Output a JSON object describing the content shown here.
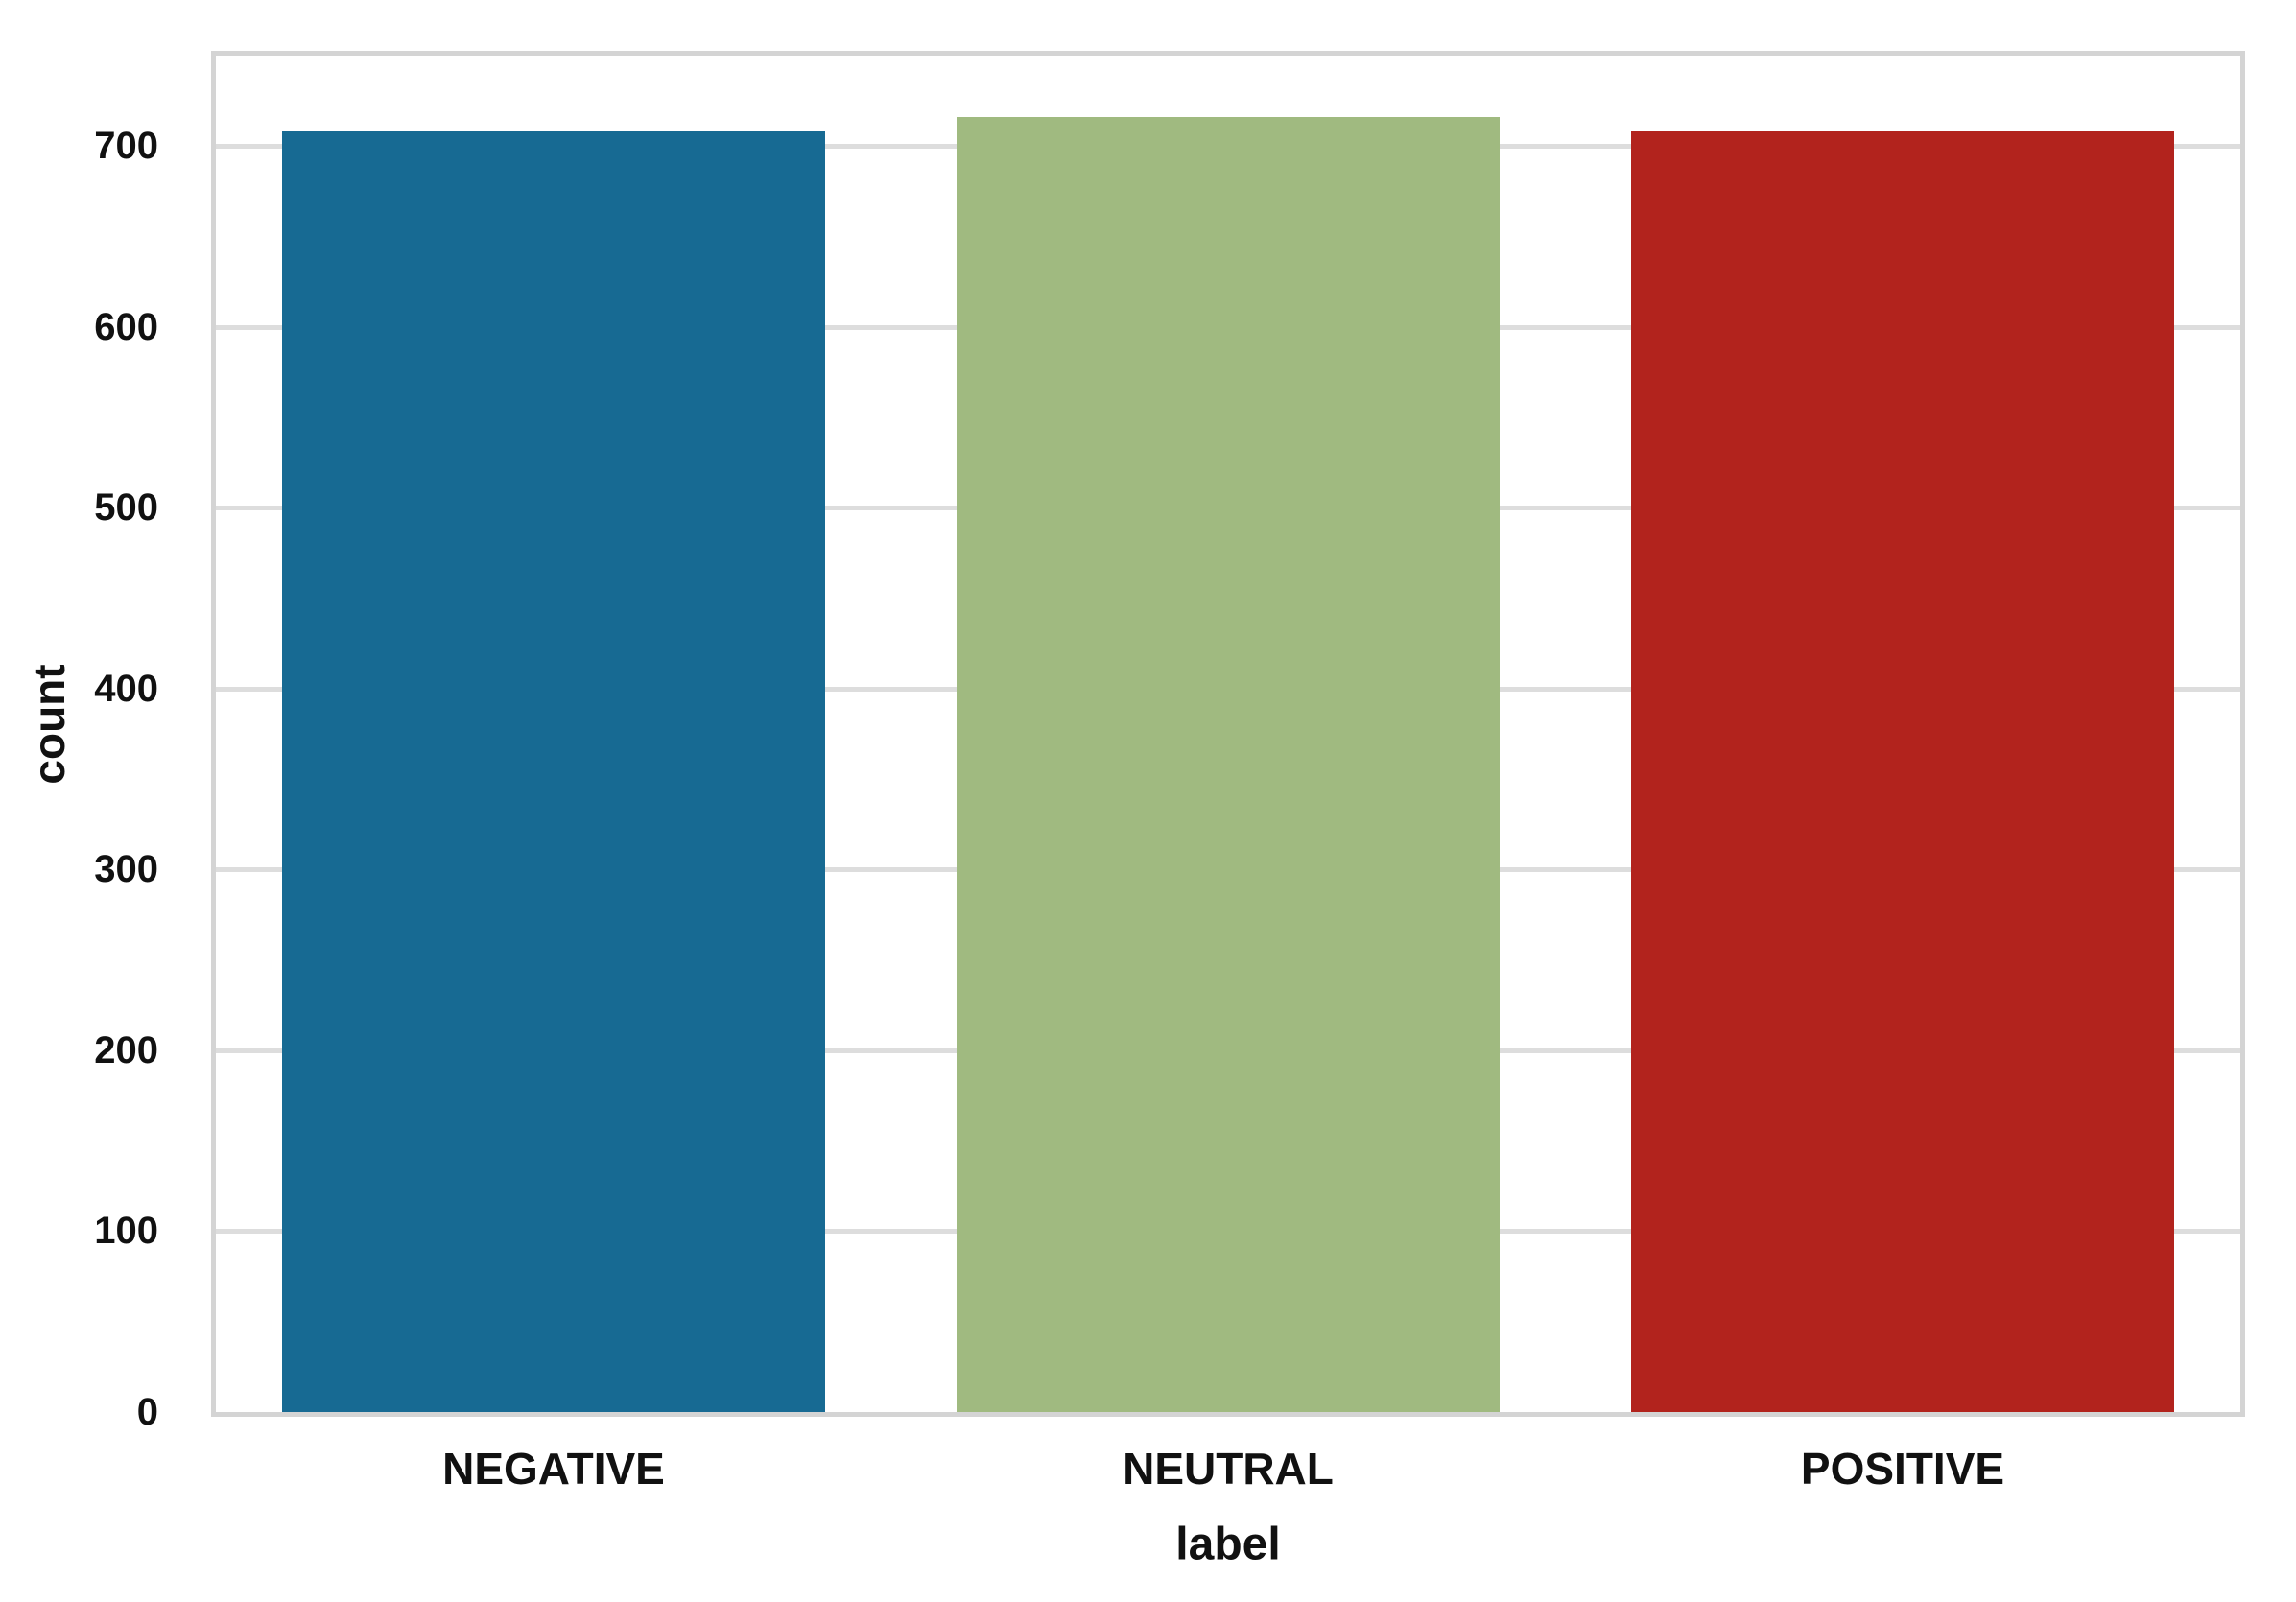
{
  "chart_data": {
    "type": "bar",
    "categories": [
      "NEGATIVE",
      "NEUTRAL",
      "POSITIVE"
    ],
    "values": [
      708,
      716,
      708
    ],
    "title": "",
    "xlabel": "label",
    "ylabel": "count",
    "ylim": [
      0,
      750
    ],
    "yticks": [
      0,
      100,
      200,
      300,
      400,
      500,
      600,
      700
    ],
    "bar_colors": [
      "#176a93",
      "#a0ba80",
      "#b2231d"
    ],
    "grid": "horizontal",
    "legend_position": "none"
  },
  "colors": {
    "background": "#ffffff",
    "plot_background": "#ffffff",
    "gridline": "#dddddd",
    "frame_border": "#d4d4d4",
    "text": "#111111"
  }
}
